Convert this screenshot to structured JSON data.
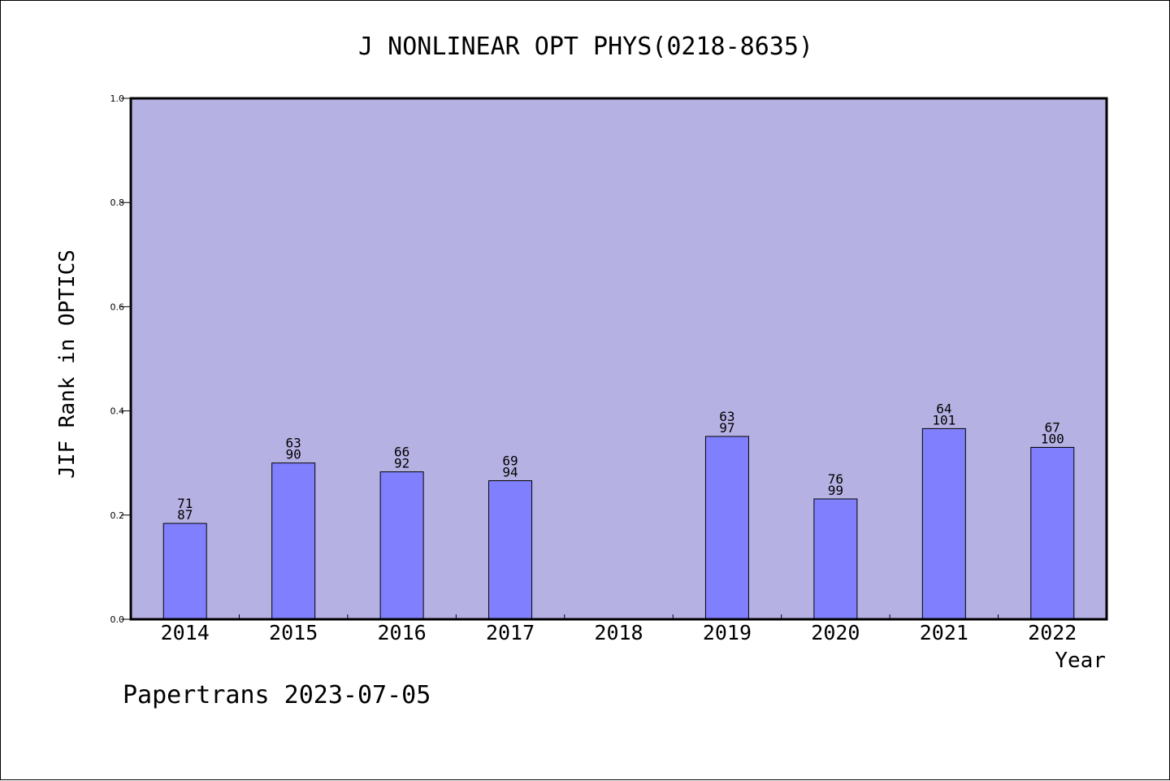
{
  "chart_data": {
    "type": "bar",
    "title": "J NONLINEAR OPT PHYS(0218-8635)",
    "xlabel": "Year",
    "ylabel": "JIF Rank in OPTICS",
    "footer": "Papertrans 2023-07-05",
    "ylim": [
      0,
      1.0
    ],
    "yticks": [
      "0.0",
      "0.2",
      "0.4",
      "0.6",
      "0.8",
      "1.0"
    ],
    "categories": [
      "2014",
      "2015",
      "2016",
      "2017",
      "2018",
      "2019",
      "2020",
      "2021",
      "2022"
    ],
    "values": [
      0.184,
      0.3,
      0.283,
      0.266,
      null,
      0.351,
      0.231,
      0.366,
      0.33
    ],
    "rank_labels": [
      "71",
      "63",
      "66",
      "69",
      "",
      "63",
      "76",
      "64",
      "67"
    ],
    "total_labels": [
      "87",
      "90",
      "92",
      "94",
      "",
      "97",
      "99",
      "101",
      "100"
    ],
    "colors": {
      "plot_background": "#b6b1e3",
      "bar_fill": "#8080ff",
      "bar_stroke": "#000000"
    },
    "grid": false,
    "legend": "none"
  }
}
